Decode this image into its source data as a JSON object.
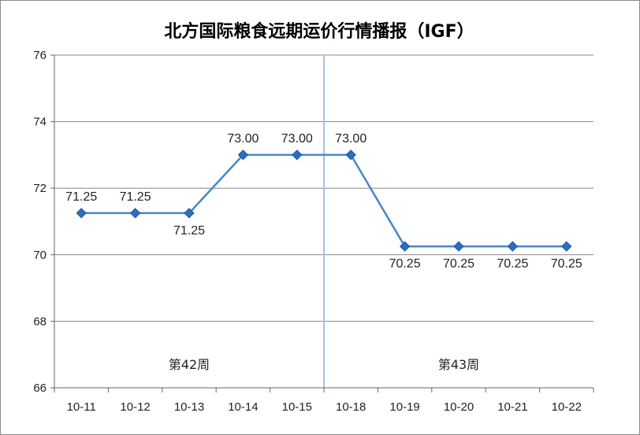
{
  "chart_data": {
    "type": "line",
    "title": "北方国际粮食远期运价行情播报（IGF）",
    "categories": [
      "10-11",
      "10-12",
      "10-13",
      "10-14",
      "10-15",
      "10-18",
      "10-19",
      "10-20",
      "10-21",
      "10-22"
    ],
    "series": [
      {
        "values": [
          71.25,
          71.25,
          71.25,
          73.0,
          73.0,
          73.0,
          70.25,
          70.25,
          70.25,
          70.25
        ],
        "labels": [
          "71.25",
          "71.25",
          "71.25",
          "73.00",
          "73.00",
          "73.00",
          "70.25",
          "70.25",
          "70.25",
          "70.25"
        ]
      }
    ],
    "ylim": [
      66,
      76
    ],
    "yticks": [
      "66",
      "68",
      "70",
      "72",
      "74",
      "76"
    ],
    "grid": true,
    "annotations": [
      {
        "text": "第42周"
      },
      {
        "text": "第43周"
      }
    ],
    "colors": {
      "series": "#4a86c8",
      "marker": "#2a6fbf",
      "divider": "#9ec0e6",
      "grid": "#888888"
    }
  }
}
